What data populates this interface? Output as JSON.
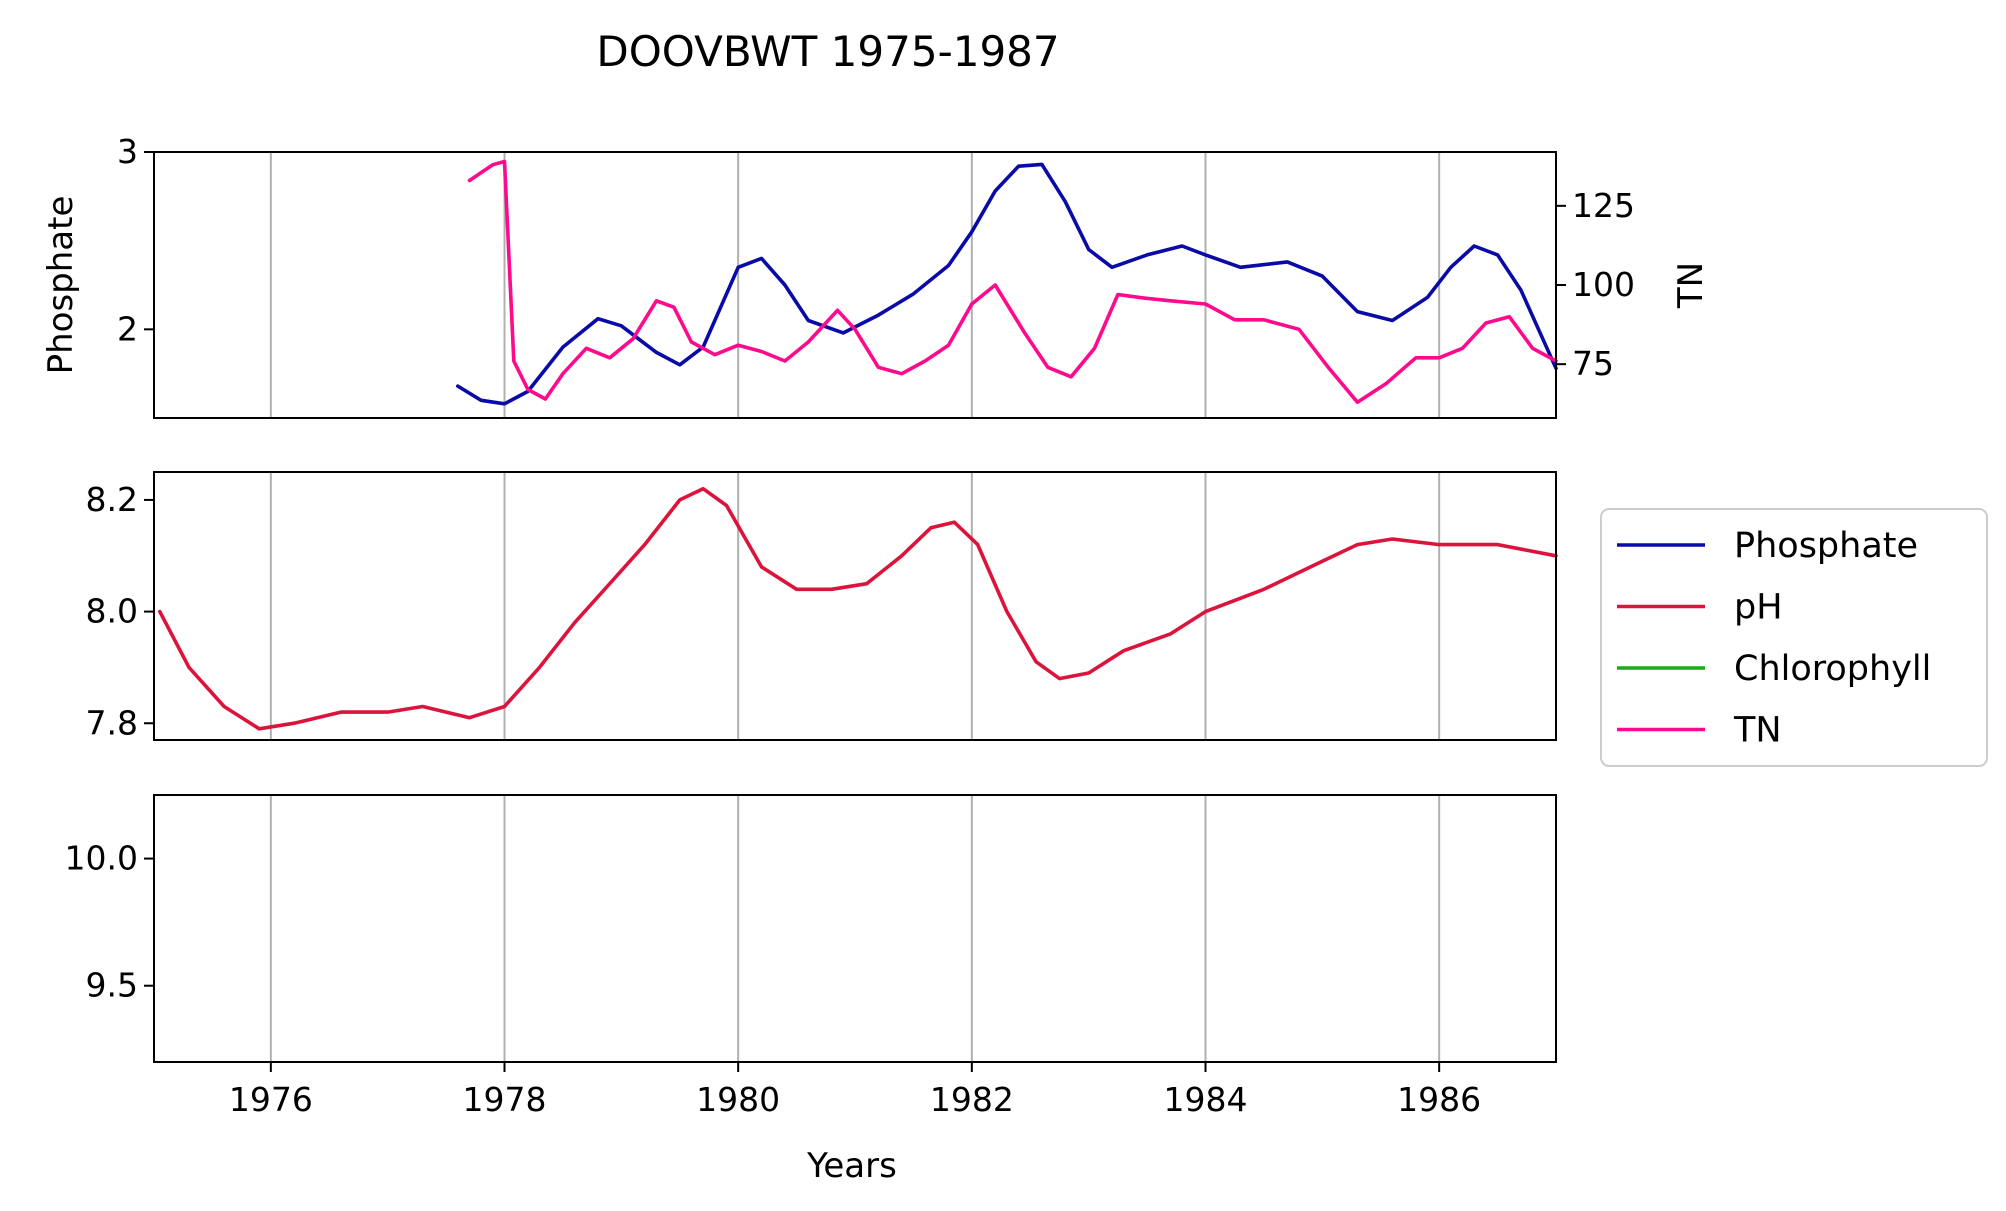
{
  "chart_data": {
    "type": "line",
    "title": "DOOVBWT 1975-1987",
    "xlabel": "Years",
    "xlim": [
      1975,
      1987
    ],
    "x_ticks": [
      "1976",
      "1978",
      "1980",
      "1982",
      "1984",
      "1986"
    ],
    "grid": "x",
    "legend": {
      "placement": "right",
      "entries": [
        {
          "label": "Phosphate",
          "color": "#0a0aa8"
        },
        {
          "label": "pH",
          "color": "#dc143c"
        },
        {
          "label": "Chlorophyll",
          "color": "#1aaa1a"
        },
        {
          "label": "TN",
          "color": "#ff0a8c"
        }
      ]
    },
    "panels": [
      {
        "ylabel": "Phosphate",
        "ylim": [
          1.5,
          3.0
        ],
        "y_ticks": [
          "2",
          "3"
        ],
        "secondary_axis": {
          "ylabel": "TN",
          "ylim": [
            58,
            142
          ],
          "y_ticks": [
            "75",
            "100",
            "125"
          ]
        },
        "series": [
          {
            "name": "Phosphate",
            "axis": "left",
            "color": "#0a0aa8",
            "x": [
              1977.6,
              1977.8,
              1978.0,
              1978.2,
              1978.5,
              1978.8,
              1979.0,
              1979.3,
              1979.5,
              1979.7,
              1980.0,
              1980.2,
              1980.4,
              1980.6,
              1980.9,
              1981.2,
              1981.5,
              1981.8,
              1982.0,
              1982.2,
              1982.4,
              1982.6,
              1982.8,
              1983.0,
              1983.2,
              1983.5,
              1983.8,
              1984.0,
              1984.3,
              1984.7,
              1985.0,
              1985.3,
              1985.6,
              1985.9,
              1986.1,
              1986.3,
              1986.5,
              1986.7,
              1987.0
            ],
            "values": [
              1.68,
              1.6,
              1.58,
              1.65,
              1.9,
              2.06,
              2.02,
              1.87,
              1.8,
              1.9,
              2.35,
              2.4,
              2.25,
              2.05,
              1.98,
              2.08,
              2.2,
              2.36,
              2.55,
              2.78,
              2.92,
              2.93,
              2.72,
              2.45,
              2.35,
              2.42,
              2.47,
              2.42,
              2.35,
              2.38,
              2.3,
              2.1,
              2.05,
              2.18,
              2.35,
              2.47,
              2.42,
              2.22,
              1.78
            ]
          },
          {
            "name": "TN",
            "axis": "right",
            "color": "#ff0a8c",
            "x": [
              1977.7,
              1977.9,
              1978.0,
              1978.08,
              1978.2,
              1978.35,
              1978.5,
              1978.7,
              1978.9,
              1979.1,
              1979.3,
              1979.45,
              1979.6,
              1979.8,
              1980.0,
              1980.2,
              1980.4,
              1980.6,
              1980.85,
              1981.0,
              1981.2,
              1981.4,
              1981.6,
              1981.8,
              1982.0,
              1982.2,
              1982.45,
              1982.65,
              1982.85,
              1983.05,
              1983.25,
              1983.45,
              1983.7,
              1984.0,
              1984.25,
              1984.5,
              1984.8,
              1985.05,
              1985.3,
              1985.55,
              1985.8,
              1986.0,
              1986.2,
              1986.4,
              1986.6,
              1986.8,
              1987.0
            ],
            "values": [
              133,
              138,
              139,
              76,
              67,
              64,
              72,
              80,
              77,
              83,
              95,
              93,
              82,
              78,
              81,
              79,
              76,
              82,
              92,
              86,
              74,
              72,
              76,
              81,
              94,
              100,
              85,
              74,
              71,
              80,
              97,
              96,
              95,
              94,
              89,
              89,
              86,
              74,
              63,
              69,
              77,
              77,
              80,
              88,
              90,
              80,
              76
            ]
          }
        ]
      },
      {
        "ylim": [
          7.77,
          8.25
        ],
        "y_ticks": [
          "7.8",
          "8.0",
          "8.2"
        ],
        "series": [
          {
            "name": "pH",
            "axis": "left",
            "color": "#dc143c",
            "x": [
              1975.05,
              1975.3,
              1975.6,
              1975.9,
              1976.2,
              1976.6,
              1977.0,
              1977.3,
              1977.7,
              1978.0,
              1978.3,
              1978.6,
              1978.9,
              1979.2,
              1979.5,
              1979.7,
              1979.9,
              1980.2,
              1980.5,
              1980.8,
              1981.1,
              1981.4,
              1981.65,
              1981.85,
              1982.05,
              1982.3,
              1982.55,
              1982.75,
              1983.0,
              1983.3,
              1983.7,
              1984.0,
              1984.5,
              1985.0,
              1985.3,
              1985.6,
              1986.0,
              1986.5,
              1987.0
            ],
            "values": [
              8.0,
              7.9,
              7.83,
              7.79,
              7.8,
              7.82,
              7.82,
              7.83,
              7.81,
              7.83,
              7.9,
              7.98,
              8.05,
              8.12,
              8.2,
              8.22,
              8.19,
              8.08,
              8.04,
              8.04,
              8.05,
              8.1,
              8.15,
              8.16,
              8.12,
              8.0,
              7.91,
              7.88,
              7.89,
              7.93,
              7.96,
              8.0,
              8.04,
              8.09,
              8.12,
              8.13,
              8.12,
              8.12,
              8.1
            ]
          },
          {
            "name": "Chlorophyll",
            "axis": "left",
            "color": "#1aaa1a",
            "x": [],
            "values": []
          }
        ]
      },
      {
        "ylim": [
          9.2,
          10.25
        ],
        "y_ticks": [
          "9.5",
          "10.0"
        ],
        "series": []
      }
    ]
  }
}
